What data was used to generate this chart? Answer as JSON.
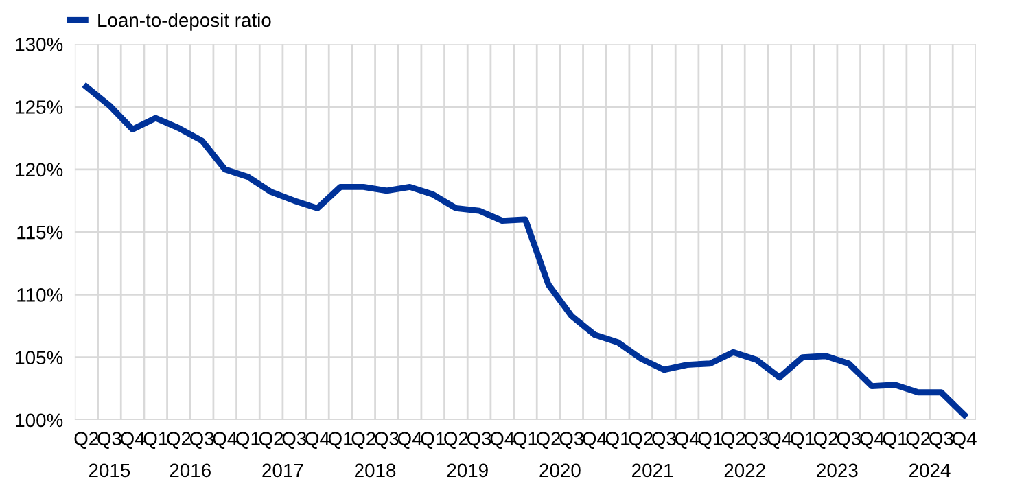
{
  "chart_data": {
    "type": "line",
    "categories": [
      "Q2",
      "Q3",
      "Q4",
      "Q1",
      "Q2",
      "Q3",
      "Q4",
      "Q1",
      "Q2",
      "Q3",
      "Q4",
      "Q1",
      "Q2",
      "Q3",
      "Q4",
      "Q1",
      "Q2",
      "Q3",
      "Q4",
      "Q1",
      "Q2",
      "Q3",
      "Q4",
      "Q1",
      "Q2",
      "Q3",
      "Q4",
      "Q1",
      "Q2",
      "Q3",
      "Q4",
      "Q1",
      "Q2",
      "Q3",
      "Q4",
      "Q1",
      "Q2",
      "Q3",
      "Q4"
    ],
    "series": [
      {
        "name": "Loan-to-deposit ratio",
        "color": "#003299",
        "values": [
          126.6,
          125.1,
          123.2,
          124.1,
          123.3,
          122.3,
          120.0,
          119.4,
          118.2,
          117.5,
          116.9,
          118.6,
          118.6,
          118.3,
          118.6,
          118.0,
          116.9,
          116.7,
          115.9,
          116.0,
          110.8,
          108.3,
          106.8,
          106.2,
          104.9,
          104.0,
          104.4,
          104.5,
          105.4,
          104.8,
          103.4,
          105.0,
          105.1,
          104.5,
          102.7,
          102.8,
          102.2,
          102.2,
          100.4
        ]
      }
    ],
    "annotations": [
      "2015",
      "2016",
      "2017",
      "2018",
      "2019",
      "2020",
      "2021",
      "2022",
      "2023",
      "2024"
    ],
    "ylim": [
      100,
      130
    ],
    "yticks": [
      {
        "value": 100,
        "label": "100%"
      },
      {
        "value": 105,
        "label": "105%"
      },
      {
        "value": 110,
        "label": "110%"
      },
      {
        "value": 115,
        "label": "115%"
      },
      {
        "value": 120,
        "label": "120%"
      },
      {
        "value": 125,
        "label": "125%"
      },
      {
        "value": 130,
        "label": "130%"
      }
    ],
    "grid": true,
    "legend": "top left",
    "marker": "none",
    "line_style": "solid"
  }
}
